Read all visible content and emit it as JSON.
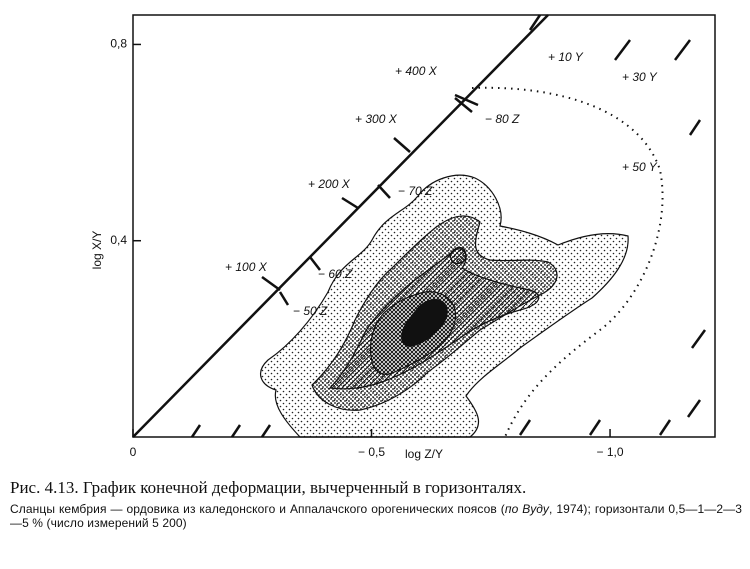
{
  "chart_data": {
    "type": "contour",
    "xlabel": "log Z/Y",
    "ylabel": "log X/Y",
    "xlim": [
      0,
      -1.22
    ],
    "ylim": [
      0,
      0.86
    ],
    "xticks": [
      0,
      {
        "value": -0.5,
        "label": "− 0,5"
      },
      {
        "value": -1.0,
        "label": "− 1,0"
      }
    ],
    "yticks": [
      {
        "value": 0.4,
        "label": "0,4"
      },
      {
        "value": 0.8,
        "label": "0,8"
      }
    ],
    "annotations": [
      "+ 400 X",
      "+ 300 X",
      "+ 200 X",
      "+ 100 X",
      "− 80 Z",
      "− 70 Z",
      "− 60 Z",
      "− 50 Z",
      "+ 10 Y",
      "+ 30 Y",
      "+ 50 Y"
    ]
  },
  "caption": {
    "title": "Рис. 4.13. График конечной деформации, вычерченный в горизонталях.",
    "note": [
      "Сланцы кембрия — ордовика из каледонского и Аппалачского орогенических поясов (",
      "по Вуду",
      ", 1974); горизонтали 0,5—1—2—3—5 % (число измерений 5 200)"
    ]
  }
}
